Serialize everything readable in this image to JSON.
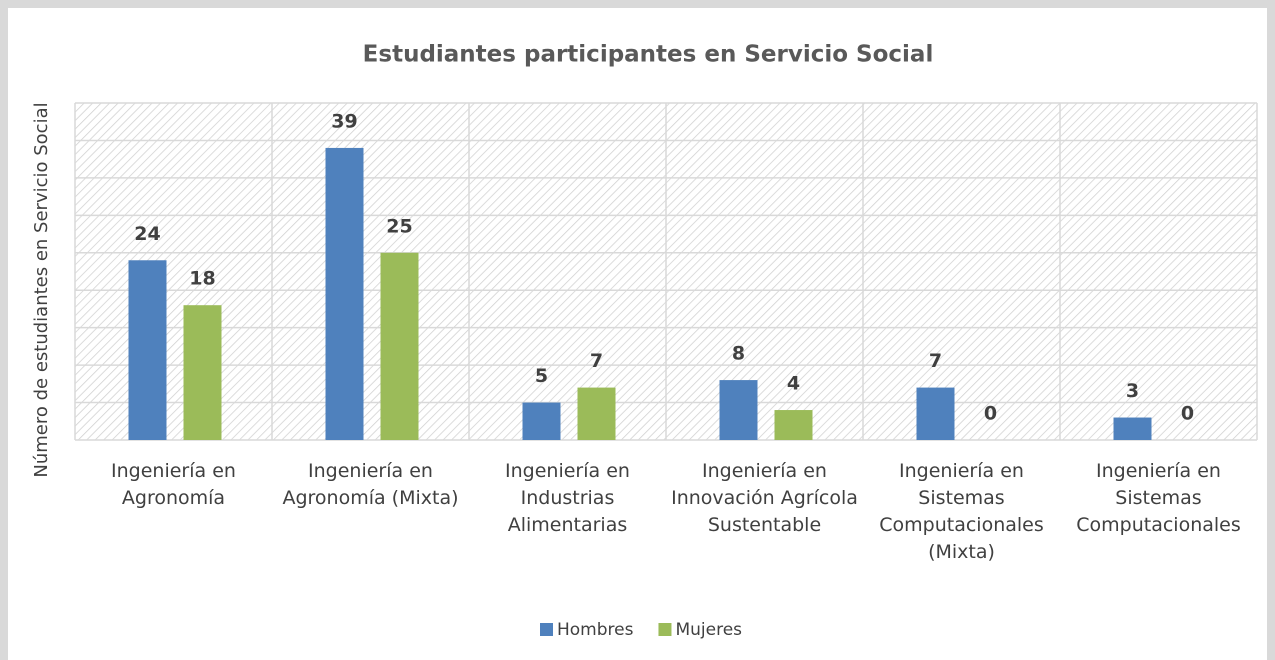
{
  "chart_data": {
    "type": "bar",
    "title": "Estudiantes participantes en Servicio Social",
    "y_label": "Número de estudiantes en Servicio Social",
    "categories": [
      "Ingeniería en Agronomía",
      "Ingeniería en Agronomía (Mixta)",
      "Ingeniería en Industrias Alimentarias",
      "Ingeniería en Innovación Agrícola Sustentable",
      "Ingeniería en Sistemas Computacionales (Mixta)",
      "Ingeniería en Sistemas Computacionales"
    ],
    "series": [
      {
        "name": "Hombres",
        "color": "#4f81bd",
        "values": [
          24,
          39,
          5,
          8,
          7,
          3
        ]
      },
      {
        "name": "Mujeres",
        "color": "#9bbb59",
        "values": [
          18,
          25,
          7,
          4,
          0,
          0
        ]
      }
    ],
    "ylim": [
      0,
      45
    ],
    "yticks": [
      0,
      5,
      10,
      15,
      20,
      25,
      30,
      35,
      40,
      45
    ],
    "grid": true,
    "legend": "bottom"
  }
}
